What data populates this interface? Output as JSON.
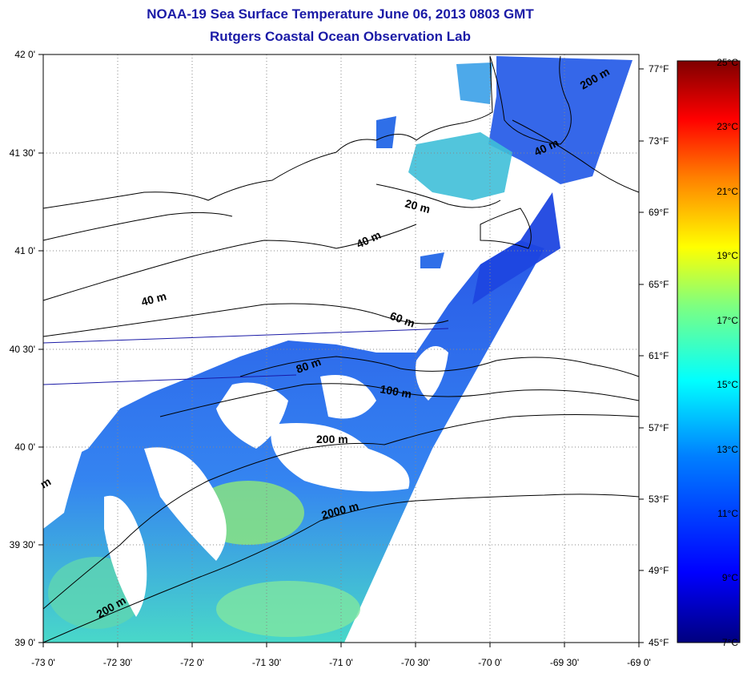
{
  "title": "NOAA-19 Sea Surface Temperature June 06, 2013 0803 GMT",
  "subtitle": "Rutgers Coastal Ocean Observation Lab",
  "map": {
    "lon_range": [
      -73,
      -69
    ],
    "lat_range": [
      39,
      42
    ],
    "lon_ticks": [
      "-73 0'",
      "-72 30'",
      "-72 0'",
      "-71 30'",
      "-71 0'",
      "-70 30'",
      "-70 0'",
      "-69 30'",
      "-69 0'"
    ],
    "lat_ticks": [
      "39 0'",
      "39 30'",
      "40 0'",
      "40 30'",
      "41 0'",
      "41 30'",
      "42 0'"
    ],
    "grid": true,
    "contour_labels": [
      "200 m",
      "40 m",
      "20 m",
      "40 m",
      "40 m",
      "60 m",
      "80 m",
      "100 m",
      "200 m",
      "2000 m",
      "200 m",
      "m"
    ]
  },
  "colorbar": {
    "celsius_labels": [
      "25°C",
      "23°C",
      "21°C",
      "19°C",
      "17°C",
      "15°C",
      "13°C",
      "11°C",
      "9°C",
      "7°C"
    ],
    "fahrenheit_labels": [
      "77°F",
      "73°F",
      "69°F",
      "65°F",
      "61°F",
      "57°F",
      "53°F",
      "49°F",
      "45°F"
    ],
    "colors": [
      "#7f0000",
      "#ff0000",
      "#ff7f00",
      "#ffff00",
      "#7fff7f",
      "#00ffff",
      "#007fff",
      "#0000ff",
      "#00007f"
    ]
  }
}
